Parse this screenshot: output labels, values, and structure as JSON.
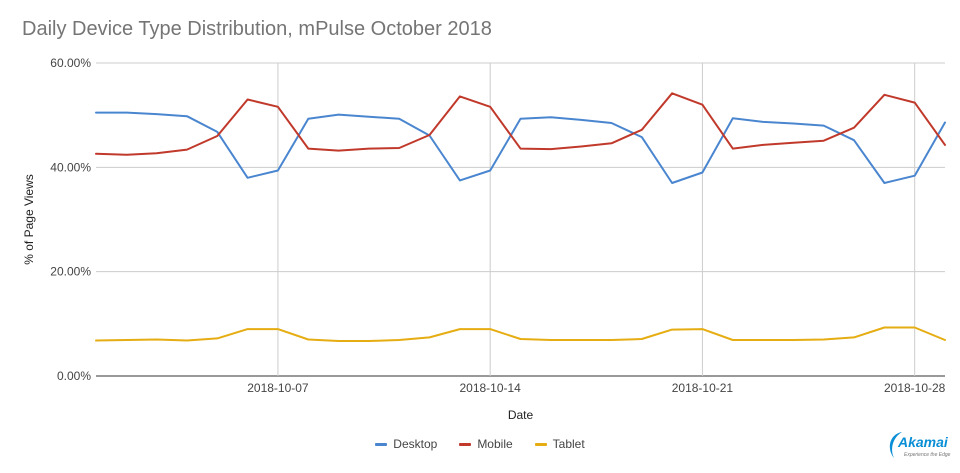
{
  "title": "Daily Device Type Distribution, mPulse October 2018",
  "logo": {
    "name": "Akamai",
    "tagline": "Experience the Edge",
    "color": "#0a8fd6"
  },
  "chart_data": {
    "type": "line",
    "title": "Daily Device Type Distribution, mPulse October 2018",
    "xlabel": "Date",
    "ylabel": "% of Page Views",
    "x": [
      "2018-10-01",
      "2018-10-02",
      "2018-10-03",
      "2018-10-04",
      "2018-10-05",
      "2018-10-06",
      "2018-10-07",
      "2018-10-08",
      "2018-10-09",
      "2018-10-10",
      "2018-10-11",
      "2018-10-12",
      "2018-10-13",
      "2018-10-14",
      "2018-10-15",
      "2018-10-16",
      "2018-10-17",
      "2018-10-18",
      "2018-10-19",
      "2018-10-20",
      "2018-10-21",
      "2018-10-22",
      "2018-10-23",
      "2018-10-24",
      "2018-10-25",
      "2018-10-26",
      "2018-10-27",
      "2018-10-28",
      "2018-10-29"
    ],
    "x_ticks": [
      "2018-10-07",
      "2018-10-14",
      "2018-10-21",
      "2018-10-28"
    ],
    "ylim": [
      0,
      60
    ],
    "y_ticks": [
      0,
      20,
      40,
      60
    ],
    "y_tick_labels": [
      "0.00%",
      "20.00%",
      "40.00%",
      "60.00%"
    ],
    "grid": true,
    "legend_position": "bottom",
    "series": [
      {
        "name": "Desktop",
        "color": "#4a86cf",
        "values": [
          50.5,
          50.5,
          50.2,
          49.8,
          46.8,
          38.0,
          39.4,
          49.3,
          50.1,
          49.7,
          49.3,
          46.1,
          37.5,
          39.4,
          49.3,
          49.6,
          49.1,
          48.5,
          45.8,
          37.0,
          39.0,
          49.4,
          48.7,
          48.4,
          48.0,
          45.2,
          37.0,
          38.4,
          48.6
        ]
      },
      {
        "name": "Mobile",
        "color": "#c0392b",
        "values": [
          42.6,
          42.4,
          42.7,
          43.4,
          46.0,
          53.0,
          51.6,
          43.6,
          43.2,
          43.6,
          43.7,
          46.2,
          53.6,
          51.6,
          43.6,
          43.5,
          44.0,
          44.6,
          47.2,
          54.2,
          52.0,
          43.6,
          44.3,
          44.7,
          45.1,
          47.6,
          53.9,
          52.4,
          44.3
        ]
      },
      {
        "name": "Tablet",
        "color": "#e6ad12",
        "values": [
          6.8,
          6.9,
          7.0,
          6.8,
          7.2,
          9.0,
          9.0,
          7.0,
          6.7,
          6.7,
          6.9,
          7.4,
          9.0,
          9.0,
          7.1,
          6.9,
          6.9,
          6.9,
          7.1,
          8.9,
          9.0,
          6.9,
          6.9,
          6.9,
          7.0,
          7.4,
          9.3,
          9.3,
          6.9
        ]
      }
    ]
  }
}
